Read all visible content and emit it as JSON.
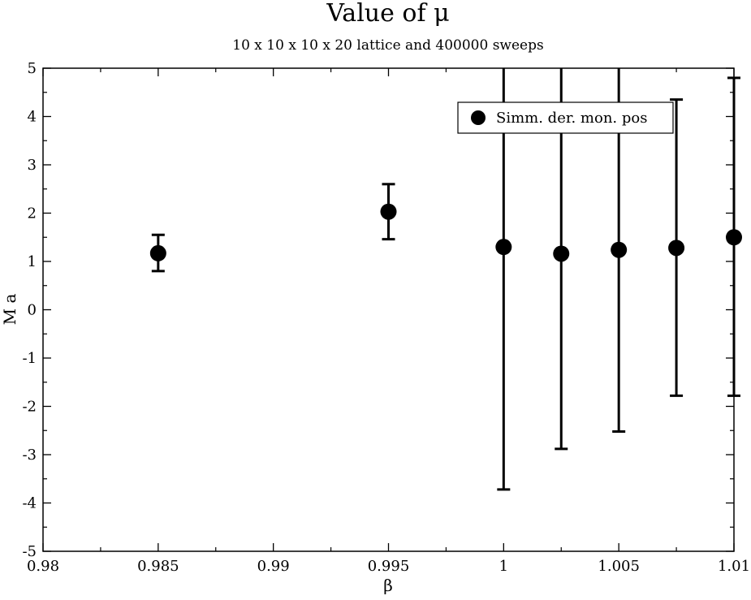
{
  "chart_data": {
    "type": "scatter",
    "title": "Value of μ",
    "subtitle": "10 x 10  x 10  x 20   lattice  and 400000 sweeps",
    "xlabel": "β",
    "ylabel": "M a",
    "xlim": [
      0.98,
      1.01
    ],
    "ylim": [
      -5,
      5
    ],
    "xticks": [
      0.98,
      0.985,
      0.99,
      0.995,
      1.0,
      1.005,
      1.01
    ],
    "xtick_labels": [
      "0.98",
      "0.985",
      "0.99",
      "0.995",
      "1",
      "1.005",
      "1.01"
    ],
    "yticks": [
      -5,
      -4,
      -3,
      -2,
      -1,
      0,
      1,
      2,
      3,
      4,
      5
    ],
    "ytick_labels": [
      "-5",
      "-4",
      "-3",
      "-2",
      "-1",
      "0",
      "1",
      "2",
      "3",
      "4",
      "5"
    ],
    "grid": false,
    "legend_position": "top-right",
    "series": [
      {
        "name": "Simm. der. mon. pos",
        "color": "#000000",
        "marker": "circle",
        "points": [
          {
            "x": 0.985,
            "y": 1.17,
            "ylow": 0.8,
            "yhigh": 1.55
          },
          {
            "x": 0.995,
            "y": 2.03,
            "ylow": 1.46,
            "yhigh": 2.6
          },
          {
            "x": 1.0,
            "y": 1.3,
            "ylow": -3.72,
            "yhigh": 5.6
          },
          {
            "x": 1.0025,
            "y": 1.16,
            "ylow": -2.88,
            "yhigh": 5.6
          },
          {
            "x": 1.005,
            "y": 1.24,
            "ylow": -2.52,
            "yhigh": 5.6
          },
          {
            "x": 1.0075,
            "y": 1.28,
            "ylow": -1.78,
            "yhigh": 4.35
          },
          {
            "x": 1.01,
            "y": 1.5,
            "ylow": -1.78,
            "yhigh": 4.8
          }
        ]
      }
    ]
  }
}
